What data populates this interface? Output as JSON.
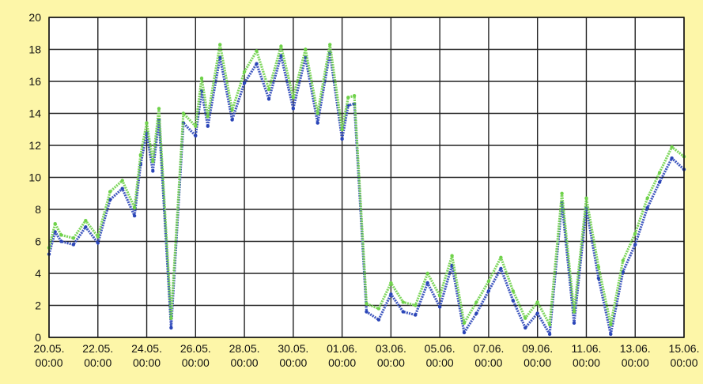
{
  "background_color": "#fdf6a8",
  "plot_background_color": "#ffffff",
  "chart_data": {
    "type": "scatter",
    "title": "",
    "xlabel": "",
    "ylabel": "",
    "ylim": [
      0,
      20
    ],
    "yticks": [
      "0",
      "2",
      "4",
      "6",
      "8",
      "10",
      "12",
      "14",
      "16",
      "18",
      "20"
    ],
    "xlim": [
      "2000-05-20",
      "2000-06-15"
    ],
    "xticks": [
      {
        "date": "2000-05-20",
        "day": "20.05.",
        "time": "00:00"
      },
      {
        "date": "2000-05-22",
        "day": "22.05.",
        "time": "00:00"
      },
      {
        "date": "2000-05-24",
        "day": "24.05.",
        "time": "00:00"
      },
      {
        "date": "2000-05-26",
        "day": "26.05.",
        "time": "00:00"
      },
      {
        "date": "2000-05-28",
        "day": "28.05.",
        "time": "00:00"
      },
      {
        "date": "2000-05-30",
        "day": "30.05.",
        "time": "00:00"
      },
      {
        "date": "2000-06-01",
        "day": "01.06.",
        "time": "00:00"
      },
      {
        "date": "2000-06-03",
        "day": "03.06.",
        "time": "00:00"
      },
      {
        "date": "2000-06-05",
        "day": "05.06.",
        "time": "00:00"
      },
      {
        "date": "2000-06-07",
        "day": "07.06.",
        "time": "00:00"
      },
      {
        "date": "2000-06-09",
        "day": "09.06.",
        "time": "00:00"
      },
      {
        "date": "2000-06-11",
        "day": "11.06.",
        "time": "00:00"
      },
      {
        "date": "2000-06-13",
        "day": "13.06.",
        "time": "00:00"
      },
      {
        "date": "2000-06-15",
        "day": "15.06.",
        "time": "00:00"
      }
    ],
    "grid": true,
    "series": [
      {
        "color": "#2a45b8",
        "x": [
          "2000-05-20 00:00",
          "2000-05-20 06:00",
          "2000-05-20 12:00",
          "2000-05-21 00:00",
          "2000-05-21 12:00",
          "2000-05-22 00:00",
          "2000-05-22 12:00",
          "2000-05-23 00:00",
          "2000-05-23 12:00",
          "2000-05-23 18:00",
          "2000-05-24 00:00",
          "2000-05-24 06:00",
          "2000-05-24 12:00",
          "2000-05-25 00:00",
          "2000-05-25 12:00",
          "2000-05-26 00:00",
          "2000-05-26 06:00",
          "2000-05-26 12:00",
          "2000-05-27 00:00",
          "2000-05-27 12:00",
          "2000-05-28 00:00",
          "2000-05-28 12:00",
          "2000-05-29 00:00",
          "2000-05-29 12:00",
          "2000-05-30 00:00",
          "2000-05-30 12:00",
          "2000-05-31 00:00",
          "2000-05-31 12:00",
          "2000-06-01 00:00",
          "2000-06-01 06:00",
          "2000-06-01 12:00",
          "2000-06-02 00:00",
          "2000-06-02 12:00",
          "2000-06-03 00:00",
          "2000-06-03 12:00",
          "2000-06-04 00:00",
          "2000-06-04 12:00",
          "2000-06-05 00:00",
          "2000-06-05 12:00",
          "2000-06-06 00:00",
          "2000-06-06 12:00",
          "2000-06-07 00:00",
          "2000-06-07 12:00",
          "2000-06-08 00:00",
          "2000-06-08 12:00",
          "2000-06-09 00:00",
          "2000-06-09 12:00",
          "2000-06-10 00:00",
          "2000-06-10 12:00",
          "2000-06-11 00:00",
          "2000-06-11 12:00",
          "2000-06-12 00:00",
          "2000-06-12 12:00",
          "2000-06-13 00:00",
          "2000-06-13 12:00",
          "2000-06-14 00:00",
          "2000-06-14 12:00",
          "2000-06-15 00:00"
        ],
        "y": [
          5.2,
          6.6,
          6.0,
          5.8,
          6.9,
          5.9,
          8.6,
          9.3,
          7.6,
          10.8,
          12.8,
          10.4,
          13.6,
          0.6,
          13.4,
          12.6,
          15.4,
          13.2,
          17.5,
          13.6,
          15.9,
          17.1,
          14.9,
          17.6,
          14.3,
          17.5,
          13.4,
          17.8,
          12.4,
          14.5,
          14.6,
          1.6,
          1.1,
          2.7,
          1.6,
          1.4,
          3.4,
          1.9,
          4.5,
          0.3,
          1.5,
          2.9,
          4.3,
          2.3,
          0.6,
          1.5,
          0.2,
          8.4,
          0.9,
          8.1,
          3.7,
          0.2,
          4.1,
          5.8,
          8.1,
          9.7,
          11.2,
          10.5
        ]
      },
      {
        "color": "#6fd24a",
        "x": [
          "2000-05-20 00:00",
          "2000-05-20 06:00",
          "2000-05-20 12:00",
          "2000-05-21 00:00",
          "2000-05-21 12:00",
          "2000-05-22 00:00",
          "2000-05-22 12:00",
          "2000-05-23 00:00",
          "2000-05-23 12:00",
          "2000-05-23 18:00",
          "2000-05-24 00:00",
          "2000-05-24 06:00",
          "2000-05-24 12:00",
          "2000-05-25 00:00",
          "2000-05-25 12:00",
          "2000-05-26 00:00",
          "2000-05-26 06:00",
          "2000-05-26 12:00",
          "2000-05-27 00:00",
          "2000-05-27 12:00",
          "2000-05-28 00:00",
          "2000-05-28 12:00",
          "2000-05-29 00:00",
          "2000-05-29 12:00",
          "2000-05-30 00:00",
          "2000-05-30 12:00",
          "2000-05-31 00:00",
          "2000-05-31 12:00",
          "2000-06-01 00:00",
          "2000-06-01 06:00",
          "2000-06-01 12:00",
          "2000-06-02 00:00",
          "2000-06-02 12:00",
          "2000-06-03 00:00",
          "2000-06-03 12:00",
          "2000-06-04 00:00",
          "2000-06-04 12:00",
          "2000-06-05 00:00",
          "2000-06-05 12:00",
          "2000-06-06 00:00",
          "2000-06-06 12:00",
          "2000-06-07 00:00",
          "2000-06-07 12:00",
          "2000-06-08 00:00",
          "2000-06-08 12:00",
          "2000-06-09 00:00",
          "2000-06-09 12:00",
          "2000-06-10 00:00",
          "2000-06-10 12:00",
          "2000-06-11 00:00",
          "2000-06-11 12:00",
          "2000-06-12 00:00",
          "2000-06-12 12:00",
          "2000-06-13 00:00",
          "2000-06-13 12:00",
          "2000-06-14 00:00",
          "2000-06-14 12:00",
          "2000-06-15 00:00"
        ],
        "y": [
          5.6,
          7.1,
          6.4,
          6.2,
          7.3,
          6.3,
          9.1,
          9.8,
          8.1,
          11.4,
          13.4,
          11.0,
          14.3,
          1.2,
          14.0,
          13.2,
          16.2,
          13.8,
          18.3,
          14.2,
          16.6,
          17.9,
          15.5,
          18.2,
          15.0,
          18.0,
          14.0,
          18.3,
          13.0,
          15.0,
          15.1,
          2.1,
          1.8,
          3.4,
          2.2,
          2.0,
          4.0,
          2.6,
          5.1,
          0.9,
          2.2,
          3.5,
          5.0,
          2.9,
          1.2,
          2.2,
          0.8,
          9.0,
          1.6,
          8.7,
          4.4,
          0.8,
          4.8,
          6.5,
          8.7,
          10.3,
          11.9,
          11.3
        ]
      }
    ]
  }
}
